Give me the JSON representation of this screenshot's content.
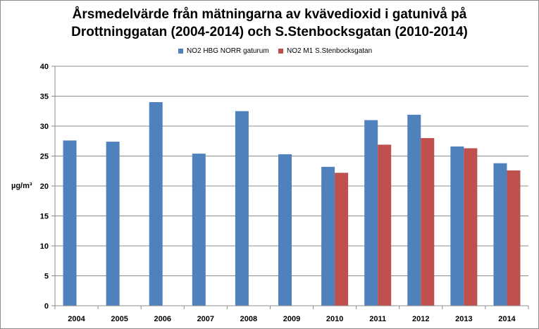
{
  "chart_data": {
    "type": "bar",
    "title": [
      "Årsmedelvärde från mätningarna av kvävedioxid i gatunivå på",
      "Drottninggatan (2004-2014) och S.Stenbocksgatan (2010-2014)"
    ],
    "ylabel": "µg/m³",
    "xlabel": "",
    "ylim": [
      0,
      40
    ],
    "yticks": [
      0,
      5,
      10,
      15,
      20,
      25,
      30,
      35,
      40
    ],
    "grid": true,
    "legend_position": "top",
    "categories": [
      "2004",
      "2005",
      "2006",
      "2007",
      "2008",
      "2009",
      "2010",
      "2011",
      "2012",
      "2013",
      "2014"
    ],
    "series": [
      {
        "name": "NO2 HBG NORR gaturum",
        "color": "#4f81bd",
        "values": [
          27.6,
          27.4,
          34.0,
          25.4,
          32.5,
          25.3,
          23.2,
          31.0,
          31.9,
          26.6,
          23.8
        ]
      },
      {
        "name": "NO2 M1 S.Stenbocksgatan",
        "color": "#c0504d",
        "values": [
          null,
          null,
          null,
          null,
          null,
          null,
          22.2,
          26.9,
          28.0,
          26.3,
          22.6
        ]
      }
    ]
  }
}
